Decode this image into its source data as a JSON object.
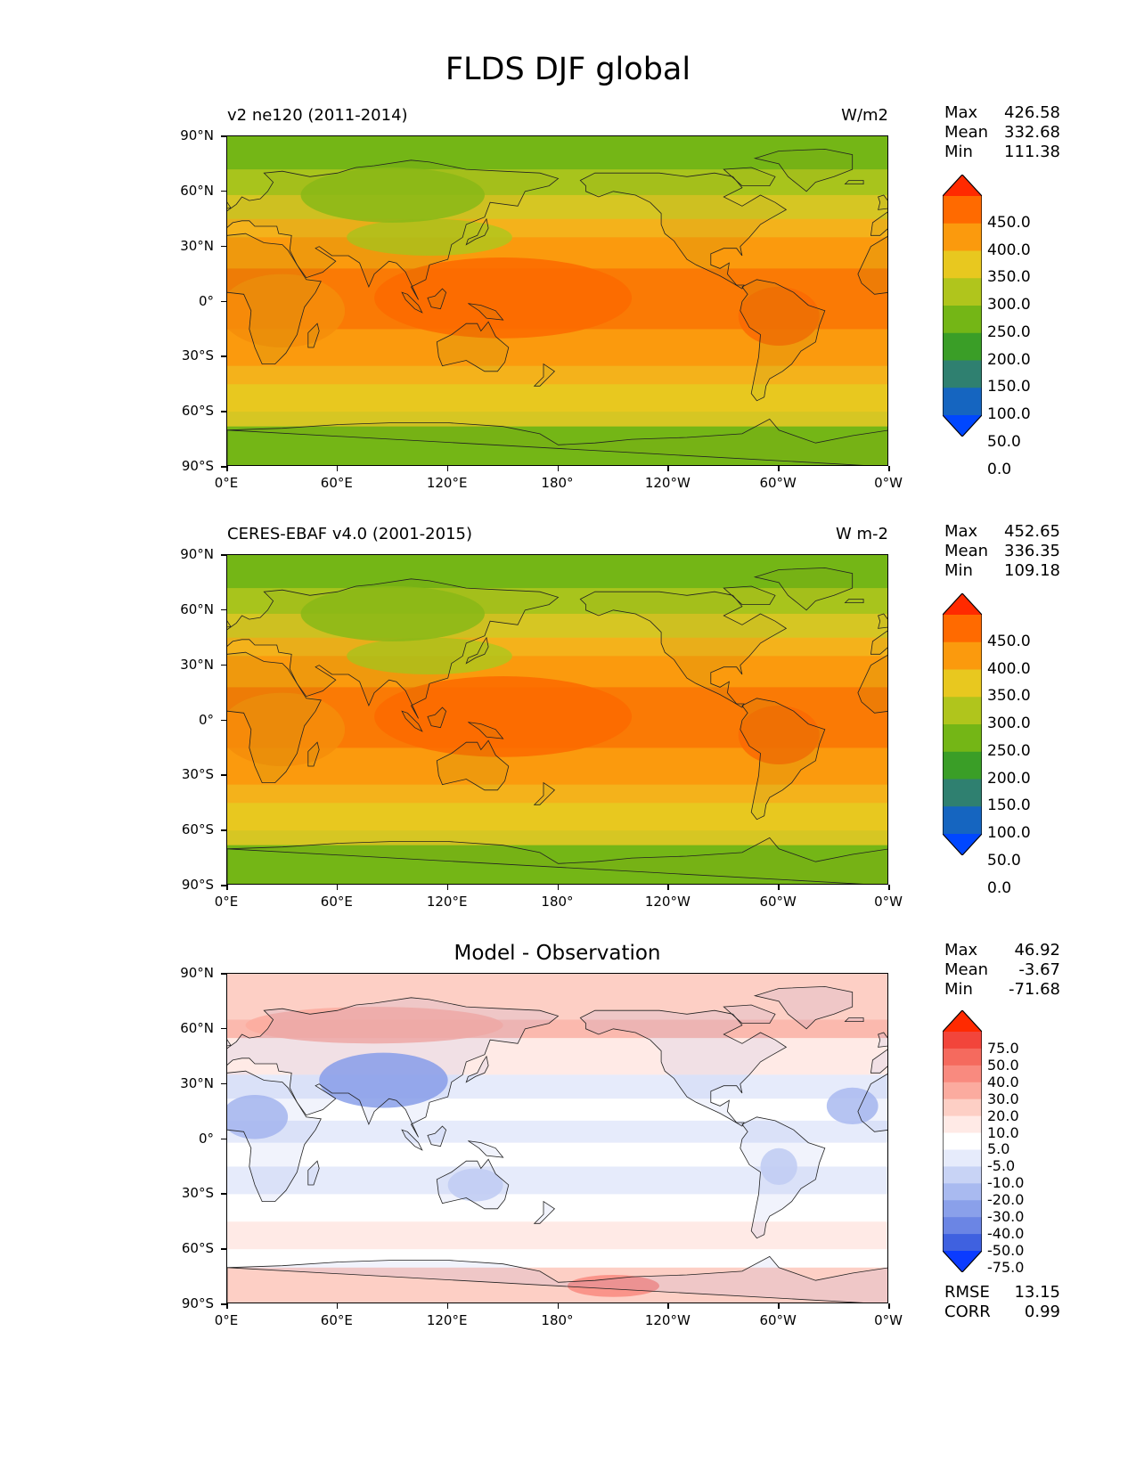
{
  "title": "FLDS DJF global",
  "panels": [
    {
      "title_left": "v2 ne120 (2011-2014)",
      "title_right": "W/m2",
      "title_center": "",
      "stats": [
        {
          "label": "Max",
          "value": "426.58"
        },
        {
          "label": "Mean",
          "value": "332.68"
        },
        {
          "label": "Min",
          "value": "111.38"
        }
      ],
      "colorbar": {
        "labels": [
          "450.0",
          "400.0",
          "350.0",
          "300.0",
          "250.0",
          "200.0",
          "150.0",
          "100.0",
          "50.0",
          "0.0"
        ],
        "colors": [
          "#ff2a00",
          "#ff6a00",
          "#fb9a0d",
          "#e8c81f",
          "#b0c51c",
          "#74b616",
          "#3a9e27",
          "#2f8070",
          "#1565c0",
          "#0047ff"
        ]
      },
      "type": "abs"
    },
    {
      "title_left": "CERES-EBAF v4.0 (2001-2015)",
      "title_right": "W m-2",
      "title_center": "",
      "stats": [
        {
          "label": "Max",
          "value": "452.65"
        },
        {
          "label": "Mean",
          "value": "336.35"
        },
        {
          "label": "Min",
          "value": "109.18"
        }
      ],
      "colorbar": {
        "labels": [
          "450.0",
          "400.0",
          "350.0",
          "300.0",
          "250.0",
          "200.0",
          "150.0",
          "100.0",
          "50.0",
          "0.0"
        ],
        "colors": [
          "#ff2a00",
          "#ff6a00",
          "#fb9a0d",
          "#e8c81f",
          "#b0c51c",
          "#74b616",
          "#3a9e27",
          "#2f8070",
          "#1565c0",
          "#0047ff"
        ]
      },
      "type": "abs"
    },
    {
      "title_left": "",
      "title_right": "",
      "title_center": "Model - Observation",
      "stats": [
        {
          "label": "Max",
          "value": "46.92"
        },
        {
          "label": "Mean",
          "value": "-3.67"
        },
        {
          "label": "Min",
          "value": "-71.68"
        }
      ],
      "extra_stats": [
        {
          "label": "RMSE",
          "value": "13.15"
        },
        {
          "label": "CORR",
          "value": "0.99"
        }
      ],
      "colorbar": {
        "labels": [
          "75.0",
          "50.0",
          "40.0",
          "30.0",
          "20.0",
          "10.0",
          "5.0",
          "-5.0",
          "-10.0",
          "-20.0",
          "-30.0",
          "-40.0",
          "-50.0",
          "-75.0"
        ],
        "colors": [
          "#ff2a00",
          "#f2453b",
          "#f56a5e",
          "#f98a7f",
          "#fbab9f",
          "#fdcfc5",
          "#ffeae6",
          "#ffffff",
          "#e6ebfb",
          "#c8d3f5",
          "#a9baf0",
          "#8aa0ea",
          "#6b85e4",
          "#3f61e0",
          "#0b3bff"
        ]
      },
      "type": "diff"
    }
  ],
  "x_ticks": [
    "0°E",
    "60°E",
    "120°E",
    "180°",
    "120°W",
    "60°W",
    "0°W"
  ],
  "y_ticks": [
    "90°N",
    "60°N",
    "30°N",
    "0°",
    "30°S",
    "60°S",
    "90°S"
  ]
}
